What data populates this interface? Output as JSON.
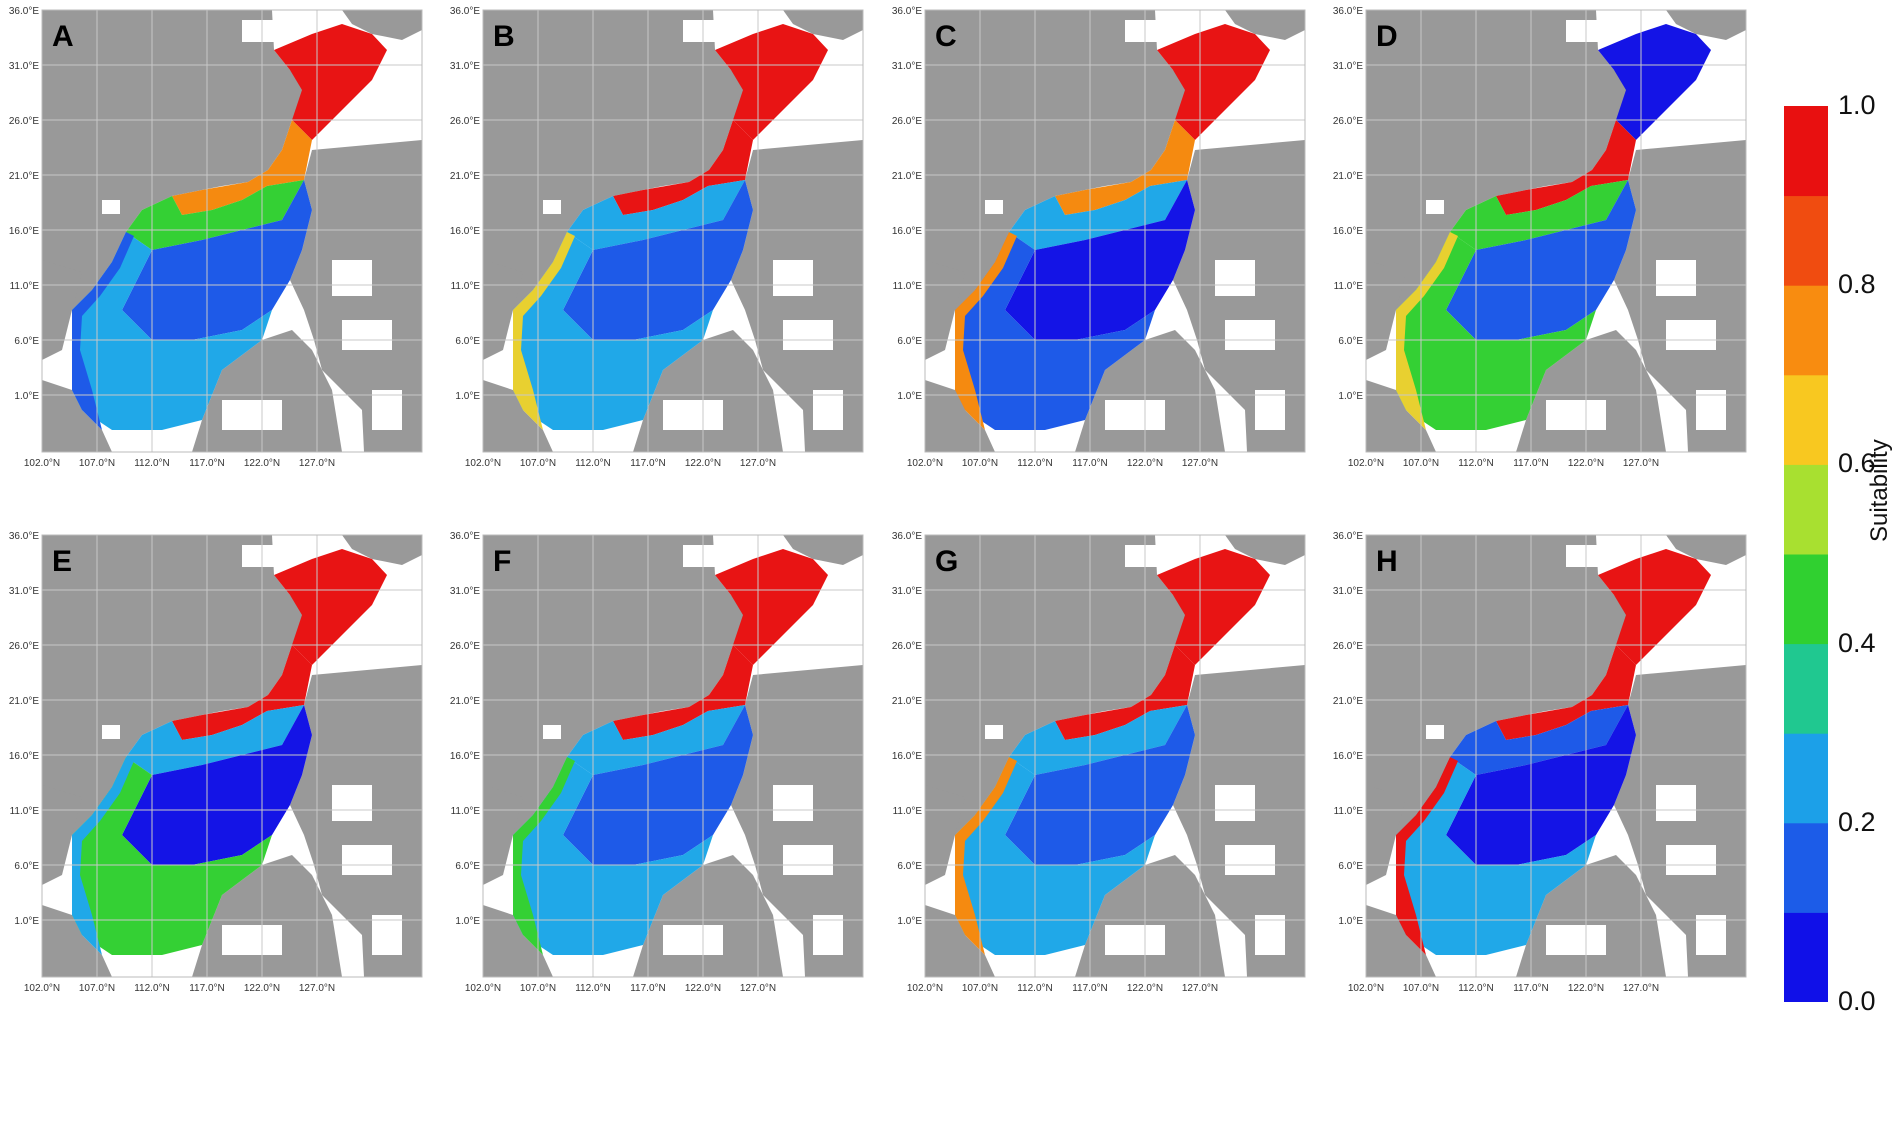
{
  "figure": {
    "legend_title": "Suitability",
    "colorbar": {
      "colors": [
        "#1010e8",
        "#1c5ce8",
        "#1ca0e8",
        "#20c890",
        "#30d030",
        "#a8e030",
        "#f8c820",
        "#f88c10",
        "#f04c10",
        "#e81010"
      ],
      "labels": [
        "1.0",
        "0.8",
        "0.6",
        "0.4",
        "0.2",
        "0.0"
      ]
    },
    "x_ticks": [
      "102.0°N",
      "107.0°N",
      "112.0°N",
      "117.0°N",
      "122.0°N",
      "127.0°N"
    ],
    "y_ticks": [
      "36.0°E",
      "31.0°E",
      "26.0°E",
      "21.0°E",
      "16.0°E",
      "11.0°E",
      "6.0°E",
      "1.0°E"
    ],
    "colors": {
      "land": "#999999",
      "missing": "#ffffff",
      "grid": "#c8c8c8"
    },
    "panels": [
      {
        "label": "A",
        "north": "red",
        "taiwan_strait": "orange",
        "shelf": "green",
        "south_shelf": "cyan",
        "basin": "blue",
        "coast": "blue"
      },
      {
        "label": "B",
        "north": "red",
        "taiwan_strait": "red",
        "shelf": "cyan",
        "south_shelf": "cyan",
        "basin": "blue",
        "coast": "yellow"
      },
      {
        "label": "C",
        "north": "red",
        "taiwan_strait": "orange",
        "shelf": "cyan",
        "south_shelf": "blue",
        "basin": "darkblue",
        "coast": "orange"
      },
      {
        "label": "D",
        "north": "darkblue",
        "taiwan_strait": "red",
        "shelf": "green",
        "south_shelf": "green",
        "basin": "blue",
        "coast": "yellow"
      },
      {
        "label": "E",
        "north": "red",
        "taiwan_strait": "red",
        "shelf": "cyan",
        "south_shelf": "green",
        "basin": "darkblue",
        "coast": "cyan"
      },
      {
        "label": "F",
        "north": "red",
        "taiwan_strait": "red",
        "shelf": "cyan",
        "south_shelf": "cyan",
        "basin": "blue",
        "coast": "green"
      },
      {
        "label": "G",
        "north": "red",
        "taiwan_strait": "red",
        "shelf": "cyan",
        "south_shelf": "cyan",
        "basin": "blue",
        "coast": "orange"
      },
      {
        "label": "H",
        "north": "red",
        "taiwan_strait": "red",
        "shelf": "blue",
        "south_shelf": "cyan",
        "basin": "darkblue",
        "coast": "red"
      }
    ]
  }
}
